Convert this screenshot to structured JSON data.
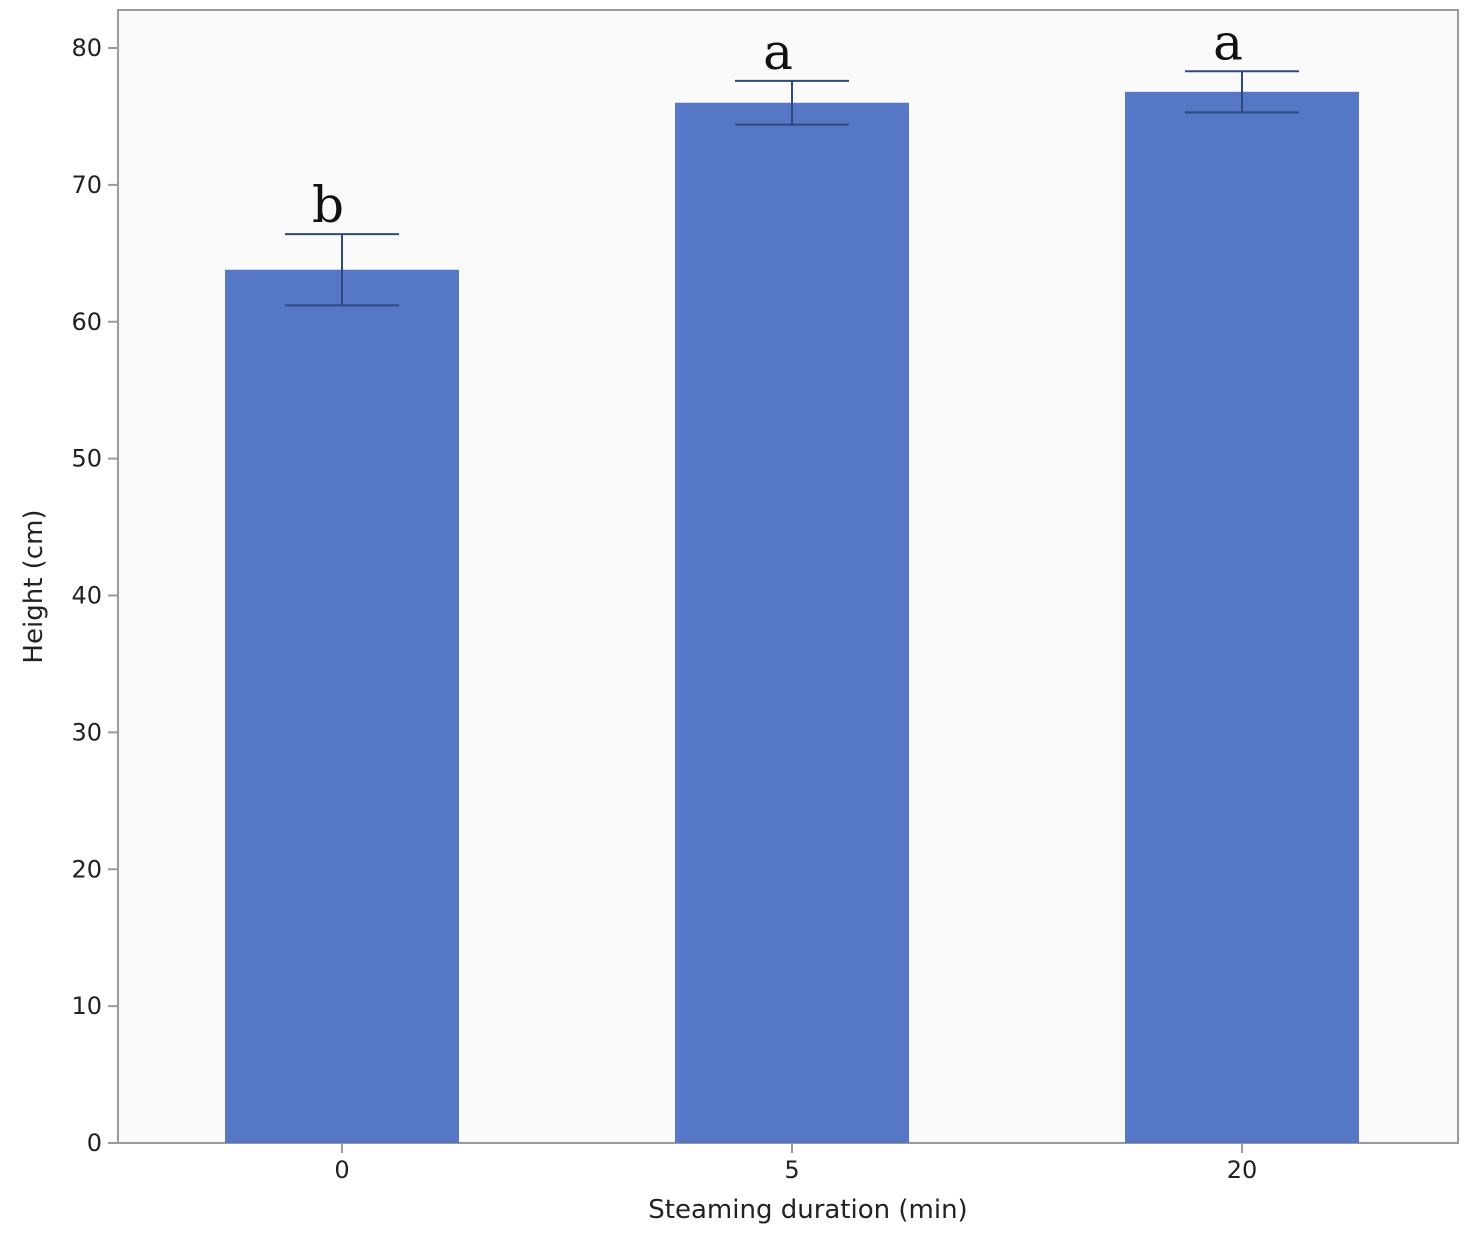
{
  "chart_data": {
    "type": "bar",
    "categories": [
      "0",
      "5",
      "20"
    ],
    "values": [
      63.8,
      76.0,
      76.8
    ],
    "error": [
      2.6,
      1.6,
      1.5
    ],
    "significance_labels": [
      "b",
      "a",
      "a"
    ],
    "xlabel": "Steaming duration (min)",
    "ylabel": "Height (cm)",
    "ylim": [
      0,
      80
    ],
    "yticks": [
      0,
      10,
      20,
      30,
      40,
      50,
      60,
      70,
      80
    ],
    "grid": false,
    "bar_color": "#5677c6",
    "error_bar_color": "#2e4a7d",
    "axis_color": "#9a9a9a",
    "plot_background": "#fafafa"
  }
}
